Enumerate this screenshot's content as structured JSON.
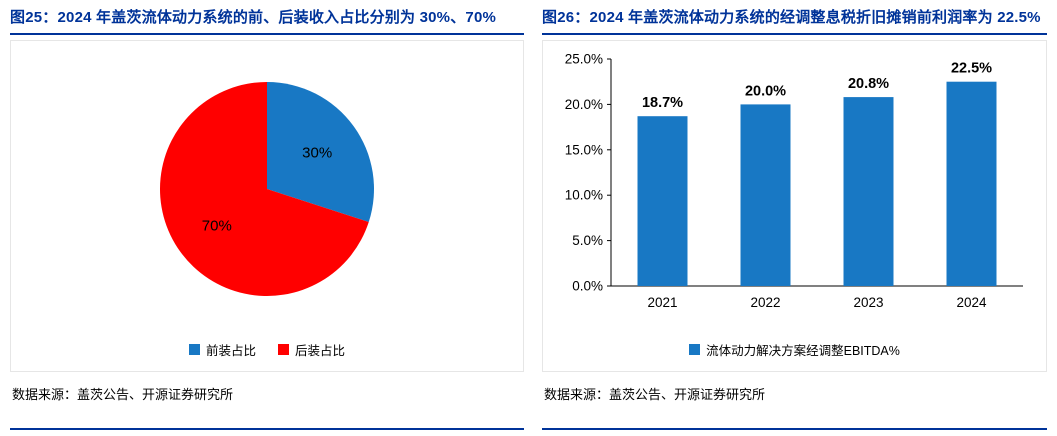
{
  "figures": [
    {
      "id": "图25",
      "title": "图25：2024 年盖茨流体动力系统的前、后装收入占比分别为 30%、70%",
      "source": "数据来源：盖茨公告、开源证券研究所"
    },
    {
      "id": "图26",
      "title": "图26：2024 年盖茨流体动力系统的经调整息税折旧摊销前利润率为 22.5%",
      "source": "数据来源：盖茨公告、开源证券研究所"
    }
  ],
  "colors": {
    "title_navy": "#003399",
    "chart_blue": "#1878C4",
    "chart_red": "#FF0000"
  },
  "chart_data": [
    {
      "type": "pie",
      "title": "图25：2024 年盖茨流体动力系统的前、后装收入占比分别为 30%、70%",
      "labels": [
        "前装占比",
        "后装占比"
      ],
      "values": [
        30,
        70
      ],
      "data_labels": [
        "30%",
        "70%"
      ],
      "colors": [
        "#1878C4",
        "#FF0000"
      ],
      "legend_position": "bottom"
    },
    {
      "type": "bar",
      "title": "图26：2024 年盖茨流体动力系统的经调整息税折旧摊销前利润率为 22.5%",
      "categories": [
        "2021",
        "2022",
        "2023",
        "2024"
      ],
      "values": [
        18.7,
        20.0,
        20.8,
        22.5
      ],
      "data_labels": [
        "18.7%",
        "20.0%",
        "20.8%",
        "22.5%"
      ],
      "series": [
        {
          "name": "流体动力解决方案经调整EBITDA%",
          "values": [
            18.7,
            20.0,
            20.8,
            22.5
          ]
        }
      ],
      "ylabel": "",
      "xlabel": "",
      "ylim": [
        0,
        25
      ],
      "ytick_labels": [
        "0.0%",
        "5.0%",
        "10.0%",
        "15.0%",
        "20.0%",
        "25.0%"
      ],
      "bar_color": "#1878C4",
      "grid": false,
      "legend_position": "bottom"
    }
  ]
}
